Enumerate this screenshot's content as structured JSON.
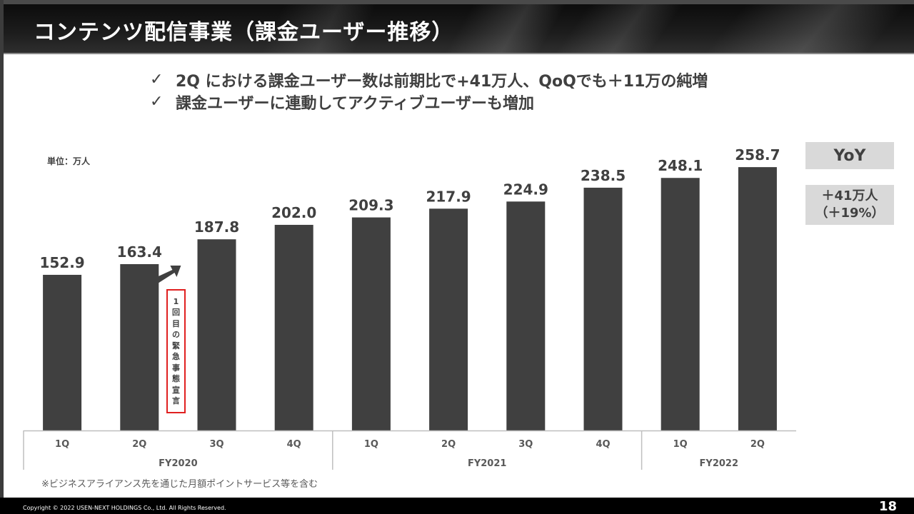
{
  "header": {
    "title": "コンテンツ配信事業（課金ユーザー推移）"
  },
  "bullets": [
    {
      "icon": "check-icon",
      "text": "2Q における課金ユーザー数は前期比で+41万人、QoQでも＋11万の純増"
    },
    {
      "icon": "check-icon",
      "text": "課金ユーザーに連動してアクティブユーザーも増加"
    }
  ],
  "check_glyph": "✓",
  "unit_label": "単位：万人",
  "yoy": {
    "label": "YoY",
    "value_line1": "＋41万人",
    "value_line2": "（＋19%）"
  },
  "event_annotation": {
    "chars": [
      "1",
      "回",
      "目",
      "の",
      "緊",
      "急",
      "事",
      "態",
      "宣",
      "言"
    ],
    "text": "1回目の緊急事態宣言",
    "border_color": "#e02020"
  },
  "footnote": "※ビジネスアライアンス先を通じた月額ポイントサービス等を含む",
  "footer": {
    "copyright": "Copyright © 2022 USEN-NEXT HOLDINGS Co., Ltd. All Rights Reserved.",
    "page_number": "18"
  },
  "colors": {
    "bar": "#404040",
    "axis": "#bfbfbf",
    "text": "#404040",
    "highlight_box": "#d9d9d9"
  },
  "chart_data": {
    "type": "bar",
    "title": "課金ユーザー推移",
    "ylabel": "単位：万人",
    "xlabel": "",
    "ylim": [
      0,
      270
    ],
    "grid": false,
    "categories": [
      "1Q",
      "2Q",
      "3Q",
      "4Q",
      "1Q",
      "2Q",
      "3Q",
      "4Q",
      "1Q",
      "2Q"
    ],
    "groups": [
      {
        "label": "FY2020",
        "count": 4
      },
      {
        "label": "FY2021",
        "count": 4
      },
      {
        "label": "FY2022",
        "count": 2
      }
    ],
    "values": [
      152.9,
      163.4,
      187.8,
      202.0,
      209.3,
      217.9,
      224.9,
      238.5,
      248.1,
      258.7
    ],
    "data_labels": [
      "152.9",
      "163.4",
      "187.8",
      "202.0",
      "209.3",
      "217.9",
      "224.9",
      "238.5",
      "248.1",
      "258.7"
    ],
    "annotations": [
      {
        "between": [
          "FY2020 2Q",
          "FY2020 3Q"
        ],
        "type": "arrow",
        "text": "1回目の緊急事態宣言"
      }
    ]
  }
}
